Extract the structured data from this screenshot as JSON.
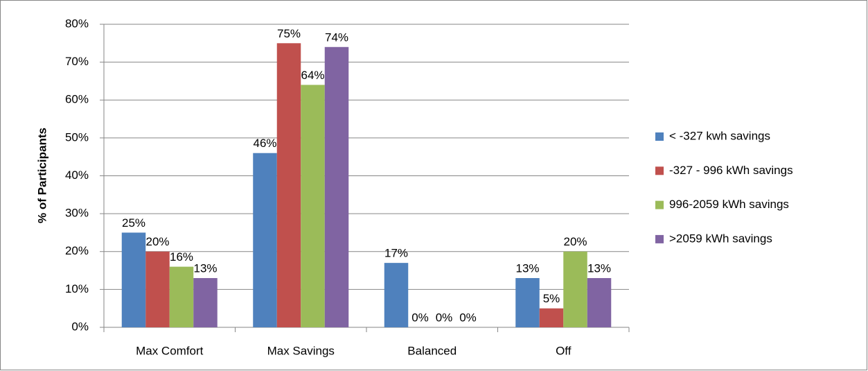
{
  "chart_data": {
    "type": "bar",
    "y_label": "% of Participants",
    "categories": [
      "Max Comfort",
      "Max Savings",
      "Balanced",
      "Off"
    ],
    "series": [
      {
        "name": "< -327 kwh savings",
        "color": "#4f81bd",
        "values": [
          25,
          46,
          17,
          13
        ],
        "value_labels": [
          "25%",
          "46%",
          "17%",
          "13%"
        ]
      },
      {
        "name": "-327 - 996 kWh savings",
        "color": "#c0504d",
        "values": [
          20,
          75,
          0,
          5
        ],
        "value_labels": [
          "20%",
          "75%",
          "0%",
          "5%"
        ]
      },
      {
        "name": "996-2059 kWh savings",
        "color": "#9bbb59",
        "values": [
          16,
          64,
          0,
          20
        ],
        "value_labels": [
          "16%",
          "64%",
          "0%",
          "20%"
        ]
      },
      {
        "name": ">2059 kWh savings",
        "color": "#8064a2",
        "values": [
          13,
          74,
          0,
          13
        ],
        "value_labels": [
          "13%",
          "74%",
          "0%",
          "13%"
        ]
      }
    ],
    "ylim": [
      0,
      80
    ],
    "yticks": [
      {
        "value": 0,
        "label": "0%"
      },
      {
        "value": 10,
        "label": "10%"
      },
      {
        "value": 20,
        "label": "20%"
      },
      {
        "value": 30,
        "label": "30%"
      },
      {
        "value": 40,
        "label": "40%"
      },
      {
        "value": 50,
        "label": "50%"
      },
      {
        "value": 60,
        "label": "60%"
      },
      {
        "value": 70,
        "label": "70%"
      },
      {
        "value": 80,
        "label": "80%"
      }
    ],
    "grid": true,
    "legend": "right"
  }
}
